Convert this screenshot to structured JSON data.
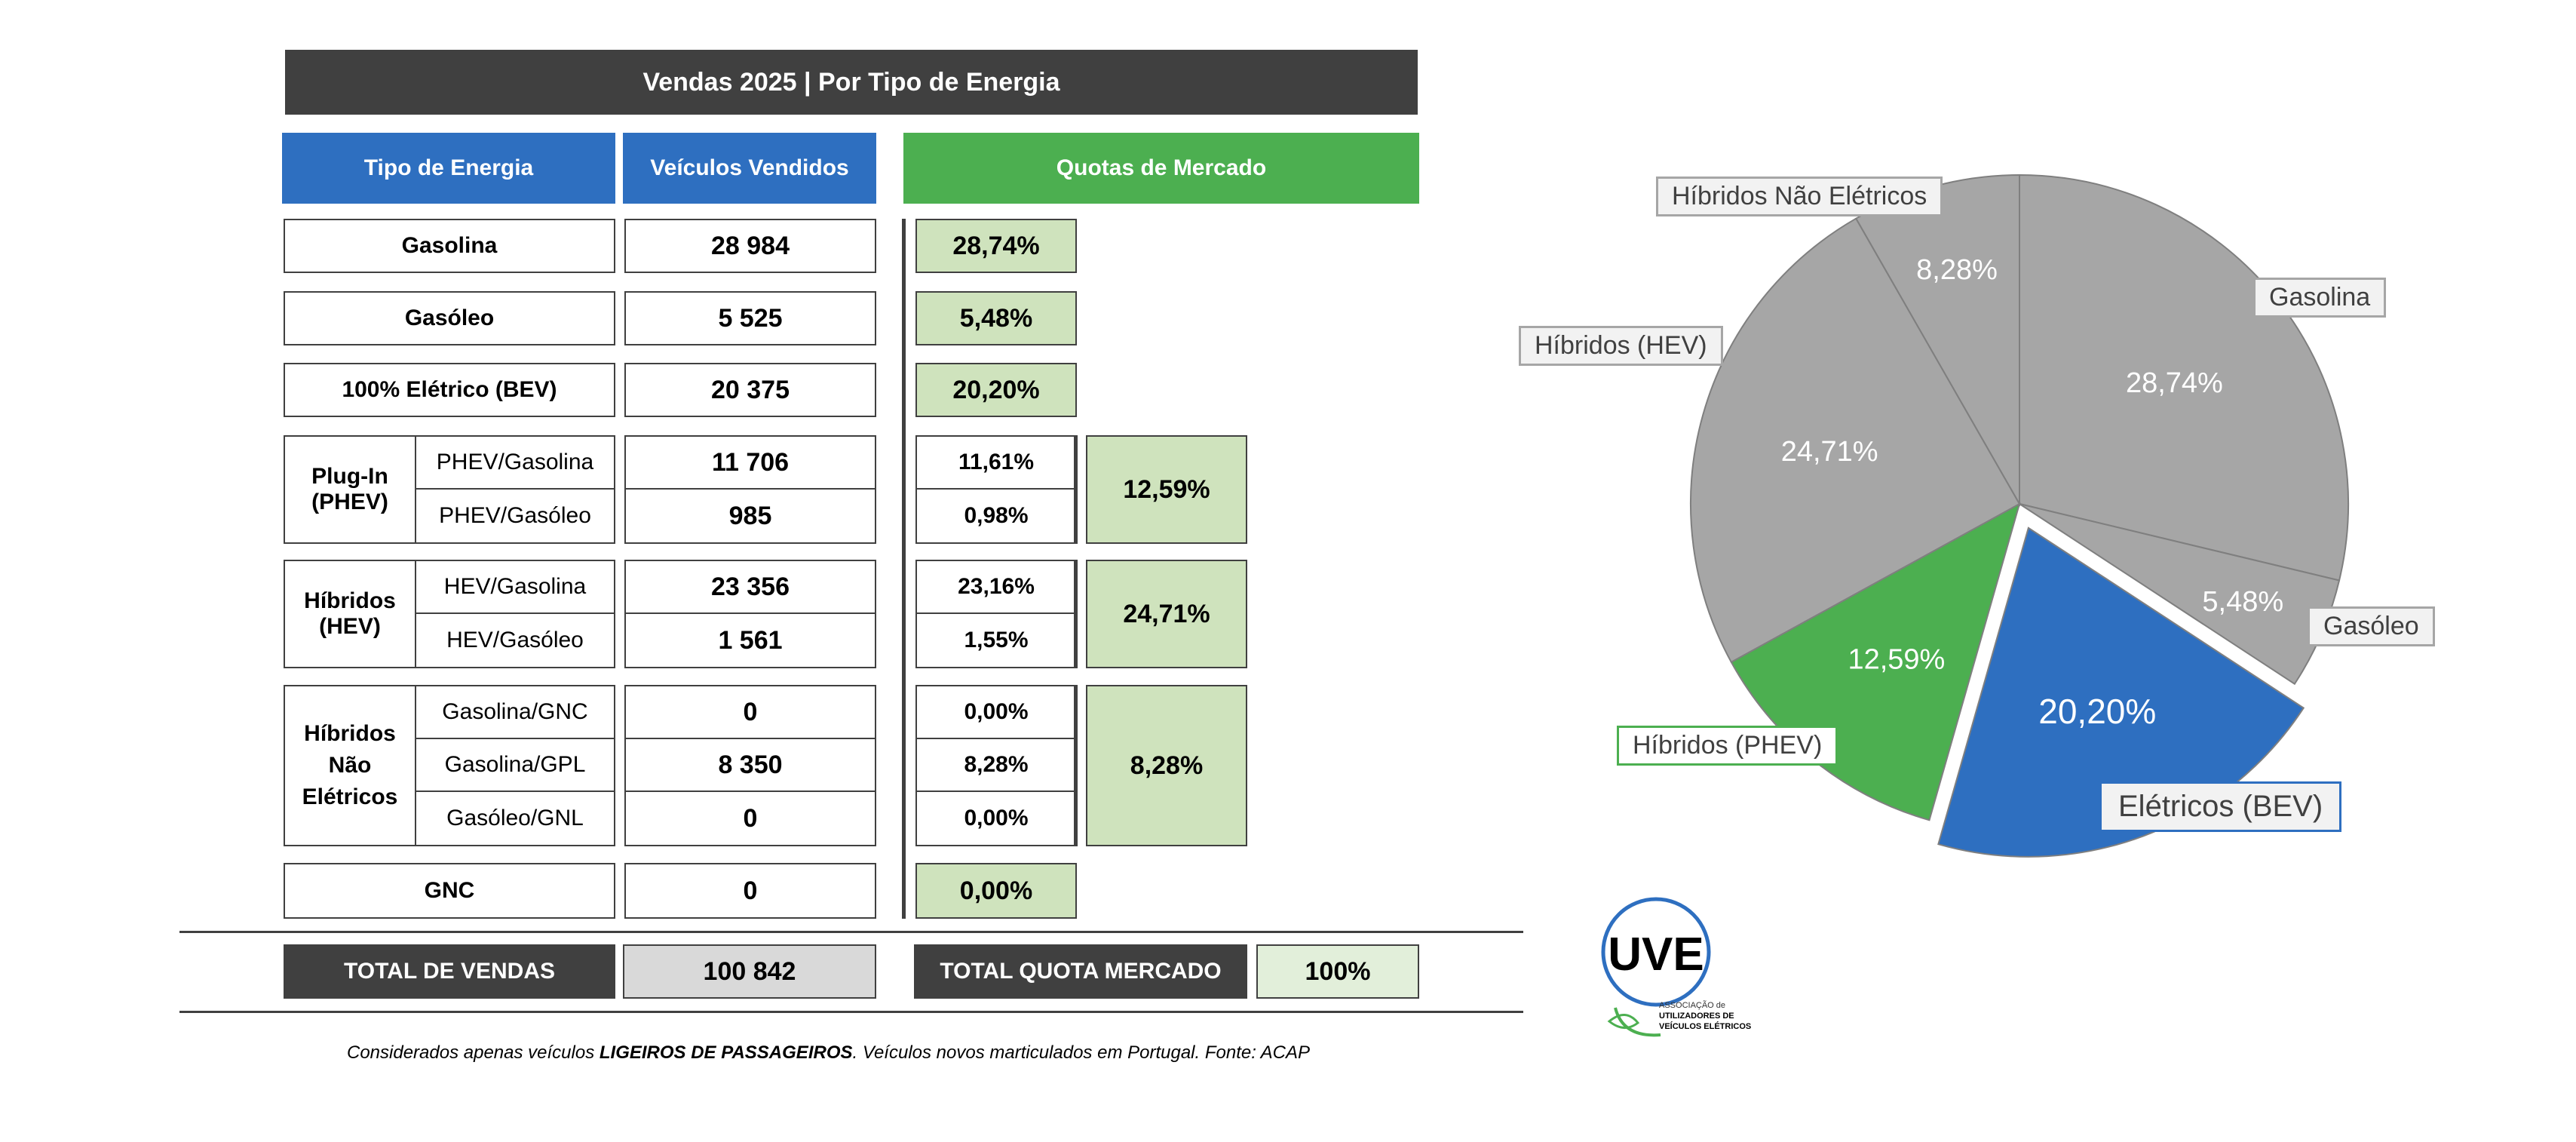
{
  "table": {
    "title": "Vendas 2025 | Por Tipo de Energia",
    "headers": {
      "tipo": "Tipo de Energia",
      "veiculos": "Veículos Vendidos",
      "quotas": "Quotas de Mercado"
    },
    "rows": {
      "gasolina": {
        "label": "Gasolina",
        "value": "28 984",
        "pct": "28,74%"
      },
      "gasoleo": {
        "label": "Gasóleo",
        "value": "5 525",
        "pct": "5,48%"
      },
      "bev": {
        "label": "100% Elétrico (BEV)",
        "value": "20 375",
        "pct": "20,20%"
      },
      "phev": {
        "label": "Plug-In (PHEV)",
        "total": "12,59%",
        "sub": [
          {
            "label": "PHEV/Gasolina",
            "value": "11 706",
            "pct": "11,61%"
          },
          {
            "label": "PHEV/Gasóleo",
            "value": "985",
            "pct": "0,98%"
          }
        ]
      },
      "hev": {
        "label": "Híbridos (HEV)",
        "total": "24,71%",
        "sub": [
          {
            "label": "HEV/Gasolina",
            "value": "23 356",
            "pct": "23,16%"
          },
          {
            "label": "HEV/Gasóleo",
            "value": "1 561",
            "pct": "1,55%"
          }
        ]
      },
      "hne": {
        "label": "Híbridos Não Elétricos",
        "total": "8,28%",
        "sub": [
          {
            "label": "Gasolina/GNC",
            "value": "0",
            "pct": "0,00%"
          },
          {
            "label": "Gasolina/GPL",
            "value": "8 350",
            "pct": "8,28%"
          },
          {
            "label": "Gasóleo/GNL",
            "value": "0",
            "pct": "0,00%"
          }
        ]
      },
      "gnc": {
        "label": "GNC",
        "value": "0",
        "pct": "0,00%"
      }
    },
    "totals": {
      "vendas_label": "TOTAL DE VENDAS",
      "vendas_value": "100 842",
      "quota_label": "TOTAL QUOTA MERCADO",
      "quota_value": "100%"
    },
    "footnote": {
      "pre": "Considerados apenas veículos ",
      "bold": "LIGEIROS DE PASSAGEIROS",
      "post": ". Veículos novos marticulados em Portugal. Fonte: ACAP"
    }
  },
  "chart_data": {
    "type": "pie",
    "slices": [
      {
        "name": "Gasolina",
        "value": 28.74,
        "label": "28,74%",
        "color": "#a6a6a6"
      },
      {
        "name": "Gasóleo",
        "value": 5.48,
        "label": "5,48%",
        "color": "#a6a6a6"
      },
      {
        "name": "Elétricos (BEV)",
        "value": 20.2,
        "label": "20,20%",
        "color": "#2e6fc0",
        "exploded": true
      },
      {
        "name": "Híbridos (PHEV)",
        "value": 12.59,
        "label": "12,59%",
        "color": "#4caf50"
      },
      {
        "name": "Híbridos (HEV)",
        "value": 24.71,
        "label": "24,71%",
        "color": "#a6a6a6"
      },
      {
        "name": "Híbridos Não Elétricos",
        "value": 8.28,
        "label": "8,28%",
        "color": "#a6a6a6"
      }
    ]
  },
  "logo": {
    "text": "UVE",
    "subtitle_lines": [
      "ASSOCIAÇÃO de",
      "UTILIZADORES DE",
      "VEÍCULOS ELÉTRICOS"
    ]
  },
  "colors": {
    "dark": "#404040",
    "blue": "#2e6fc0",
    "green": "#4caf50",
    "light_green": "#cfe3bd",
    "gray": "#a6a6a6"
  }
}
